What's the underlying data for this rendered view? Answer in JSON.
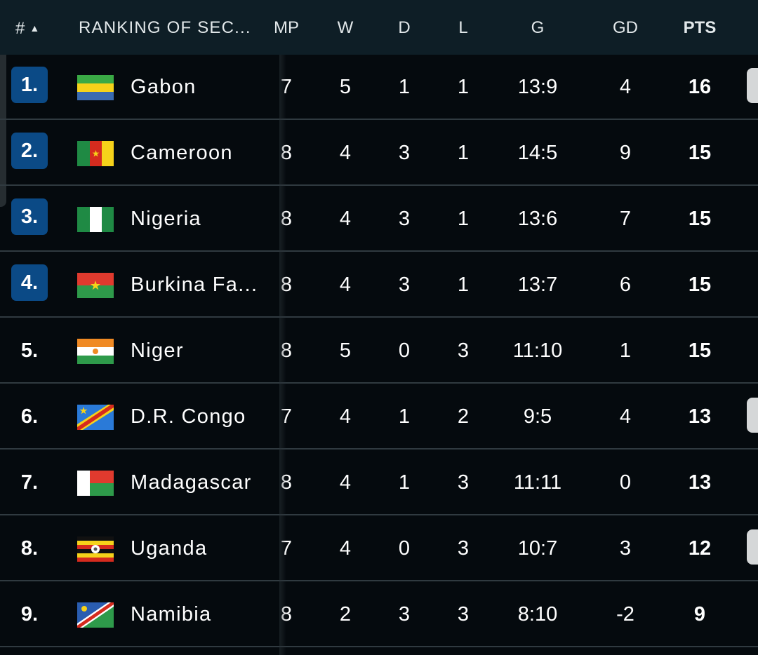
{
  "header": {
    "rank_label": "#",
    "sort_icon": "triangle-up-icon",
    "team_label": "RANKING OF SEC...",
    "mp": "MP",
    "w": "W",
    "d": "D",
    "l": "L",
    "g": "G",
    "gd": "GD",
    "pts": "PTS"
  },
  "colors": {
    "header_bg": "#0e1e26",
    "row_bg": "#050a0e",
    "qualified_badge": "#0b4a86",
    "row_divider": "#303a40"
  },
  "rows": [
    {
      "rank": "1.",
      "team": "Gabon",
      "flag": "gabon-flag-icon",
      "mp": "7",
      "w": "5",
      "d": "1",
      "l": "1",
      "g": "13:9",
      "gd": "4",
      "pts": "16",
      "qualified": true
    },
    {
      "rank": "2.",
      "team": "Cameroon",
      "flag": "cameroon-flag-icon",
      "mp": "8",
      "w": "4",
      "d": "3",
      "l": "1",
      "g": "14:5",
      "gd": "9",
      "pts": "15",
      "qualified": true
    },
    {
      "rank": "3.",
      "team": "Nigeria",
      "flag": "nigeria-flag-icon",
      "mp": "8",
      "w": "4",
      "d": "3",
      "l": "1",
      "g": "13:6",
      "gd": "7",
      "pts": "15",
      "qualified": true
    },
    {
      "rank": "4.",
      "team": "Burkina Fa...",
      "flag": "burkina-faso-flag-icon",
      "mp": "8",
      "w": "4",
      "d": "3",
      "l": "1",
      "g": "13:7",
      "gd": "6",
      "pts": "15",
      "qualified": true
    },
    {
      "rank": "5.",
      "team": "Niger",
      "flag": "niger-flag-icon",
      "mp": "8",
      "w": "5",
      "d": "0",
      "l": "3",
      "g": "11:10",
      "gd": "1",
      "pts": "15",
      "qualified": false
    },
    {
      "rank": "6.",
      "team": "D.R. Congo",
      "flag": "dr-congo-flag-icon",
      "mp": "7",
      "w": "4",
      "d": "1",
      "l": "2",
      "g": "9:5",
      "gd": "4",
      "pts": "13",
      "qualified": false
    },
    {
      "rank": "7.",
      "team": "Madagascar",
      "flag": "madagascar-flag-icon",
      "mp": "8",
      "w": "4",
      "d": "1",
      "l": "3",
      "g": "11:11",
      "gd": "0",
      "pts": "13",
      "qualified": false
    },
    {
      "rank": "8.",
      "team": "Uganda",
      "flag": "uganda-flag-icon",
      "mp": "7",
      "w": "4",
      "d": "0",
      "l": "3",
      "g": "10:7",
      "gd": "3",
      "pts": "12",
      "qualified": false
    },
    {
      "rank": "9.",
      "team": "Namibia",
      "flag": "namibia-flag-icon",
      "mp": "8",
      "w": "2",
      "d": "3",
      "l": "3",
      "g": "8:10",
      "gd": "-2",
      "pts": "9",
      "qualified": false
    }
  ]
}
